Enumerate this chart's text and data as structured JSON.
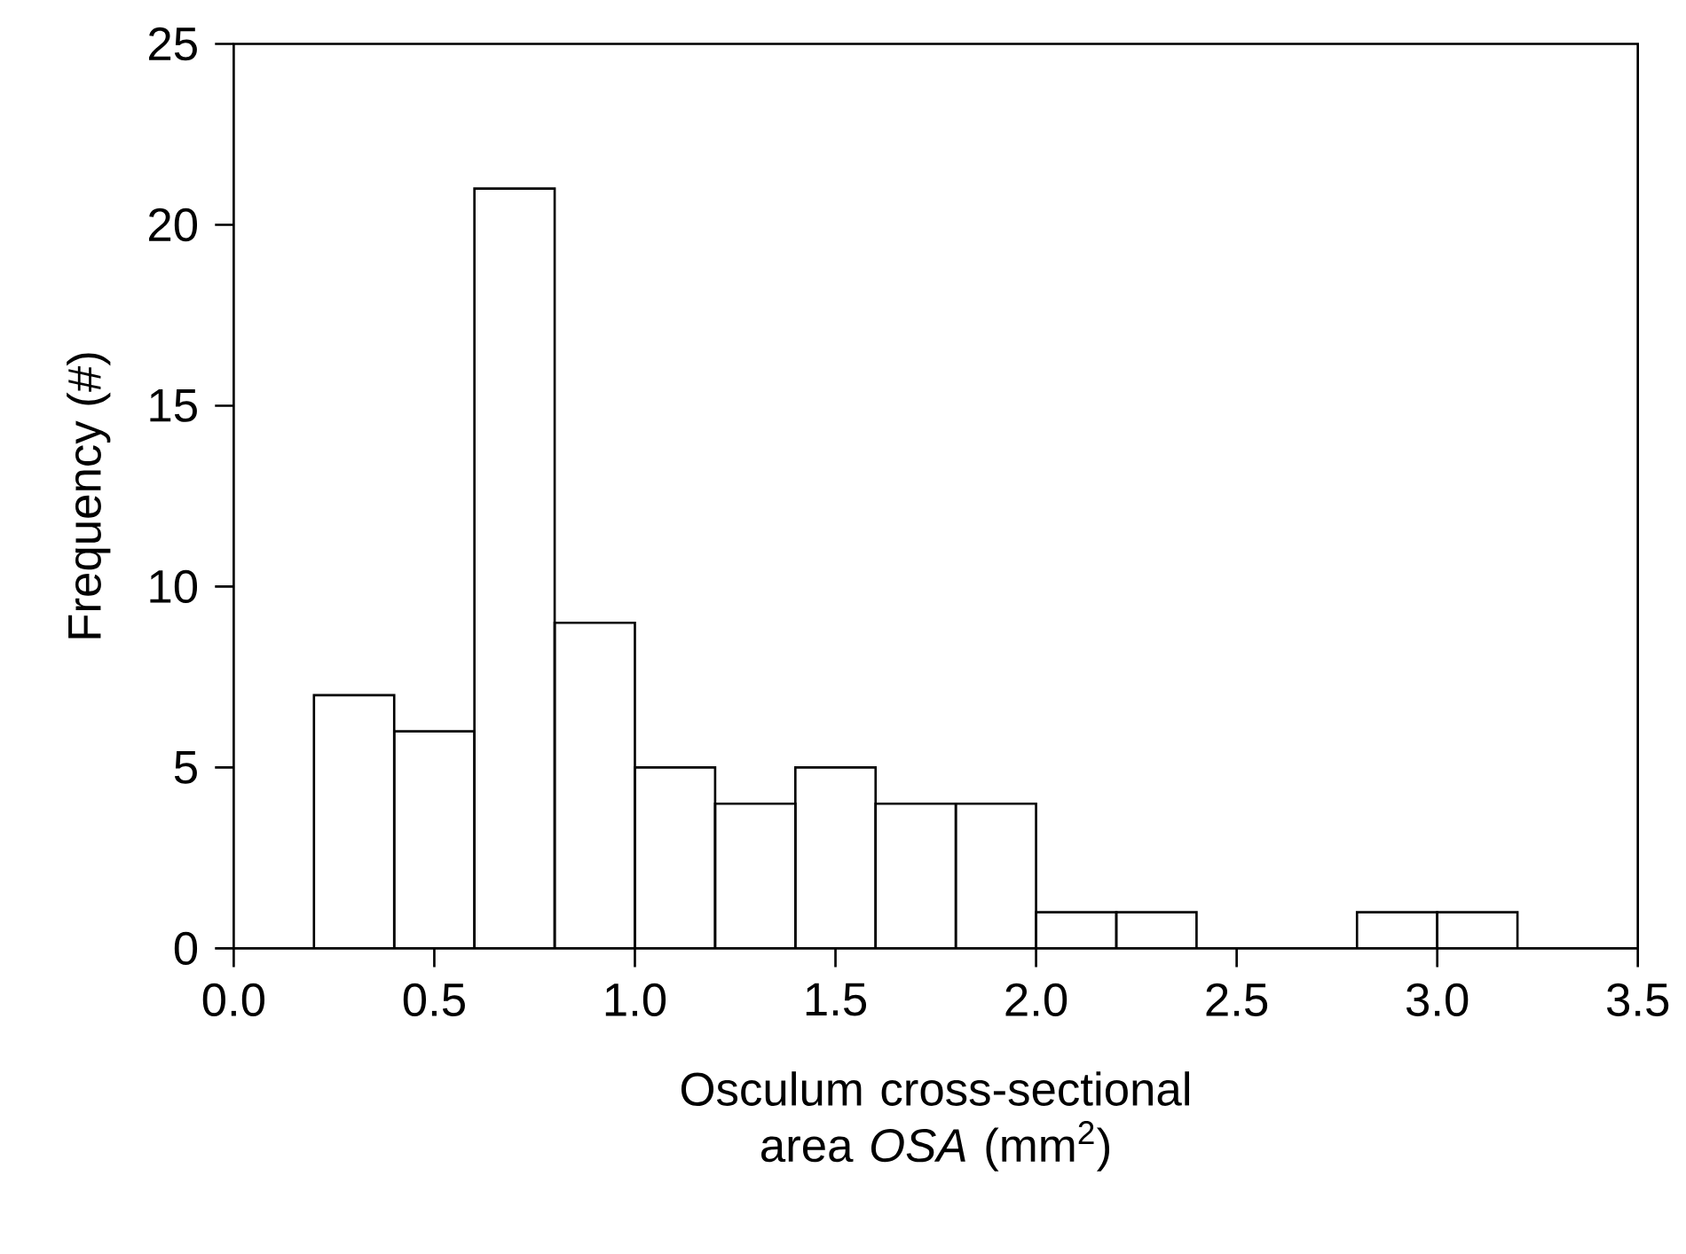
{
  "chart_data": {
    "type": "histogram",
    "xlabel": "Osculum cross-sectional area *OSA* (mm$^{2}$)",
    "ylabel": "Frequency (#)",
    "bins": [
      0.2,
      0.4,
      0.6,
      0.8,
      1.0,
      1.2,
      1.4,
      1.6,
      1.8,
      2.0,
      2.2,
      2.4,
      2.6,
      2.8,
      3.0,
      3.2
    ],
    "values": [
      7,
      6,
      21,
      9,
      5,
      4,
      5,
      4,
      4,
      1,
      1,
      0,
      0,
      1,
      1
    ],
    "color": "#000000",
    "xlim": [
      0,
      3.5
    ],
    "ylim": [
      0,
      25
    ],
    "xticks": [
      {
        "value": 0,
        "label": "0.0"
      },
      {
        "value": 0.5,
        "label": "0.5"
      },
      {
        "value": 1,
        "label": "1.0"
      },
      {
        "value": 1.5,
        "label": "1.5"
      },
      {
        "value": 2,
        "label": "2.0"
      },
      {
        "value": 2.5,
        "label": "2.5"
      },
      {
        "value": 3,
        "label": "3.0"
      },
      {
        "value": 3.5,
        "label": "3.5"
      }
    ],
    "yticks": [
      0,
      5,
      10,
      15,
      20,
      25
    ]
  }
}
